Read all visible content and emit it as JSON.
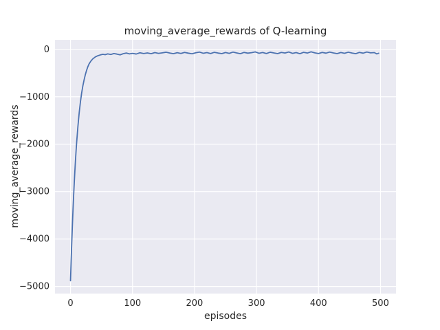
{
  "figure": {
    "background": "#ffffff"
  },
  "chart_data": {
    "type": "line",
    "title": "moving_average_rewards of Q-learning",
    "xlabel": "episodes",
    "ylabel": "moving_average_rewards",
    "xlim": [
      -25,
      525
    ],
    "ylim": [
      -5150,
      200
    ],
    "xticks": [
      0,
      100,
      200,
      300,
      400,
      500
    ],
    "yticks": [
      0,
      -1000,
      -2000,
      -3000,
      -4000,
      -5000
    ],
    "grid": true,
    "legend_position": "none",
    "line_color": "#4c72b0",
    "axes_background": "#eaeaf2",
    "grid_color": "#ffffff",
    "text_color": "#262626",
    "series": [
      {
        "name": "moving_average_rewards",
        "points": [
          [
            0,
            -4880
          ],
          [
            1,
            -4480
          ],
          [
            2,
            -4090
          ],
          [
            3,
            -3730
          ],
          [
            4,
            -3400
          ],
          [
            5,
            -3100
          ],
          [
            6,
            -2830
          ],
          [
            7,
            -2580
          ],
          [
            8,
            -2350
          ],
          [
            9,
            -2140
          ],
          [
            10,
            -1950
          ],
          [
            12,
            -1620
          ],
          [
            14,
            -1340
          ],
          [
            16,
            -1110
          ],
          [
            18,
            -920
          ],
          [
            20,
            -765
          ],
          [
            22,
            -640
          ],
          [
            24,
            -530
          ],
          [
            26,
            -440
          ],
          [
            28,
            -365
          ],
          [
            30,
            -305
          ],
          [
            33,
            -245
          ],
          [
            36,
            -200
          ],
          [
            40,
            -160
          ],
          [
            44,
            -135
          ],
          [
            48,
            -118
          ],
          [
            52,
            -105
          ],
          [
            56,
            -112
          ],
          [
            60,
            -95
          ],
          [
            65,
            -108
          ],
          [
            70,
            -88
          ],
          [
            75,
            -100
          ],
          [
            80,
            -115
          ],
          [
            85,
            -92
          ],
          [
            90,
            -78
          ],
          [
            95,
            -96
          ],
          [
            100,
            -84
          ],
          [
            106,
            -98
          ],
          [
            112,
            -72
          ],
          [
            118,
            -88
          ],
          [
            124,
            -76
          ],
          [
            130,
            -92
          ],
          [
            136,
            -68
          ],
          [
            142,
            -84
          ],
          [
            148,
            -74
          ],
          [
            154,
            -60
          ],
          [
            160,
            -78
          ],
          [
            166,
            -92
          ],
          [
            172,
            -70
          ],
          [
            178,
            -86
          ],
          [
            184,
            -64
          ],
          [
            190,
            -80
          ],
          [
            196,
            -94
          ],
          [
            202,
            -72
          ],
          [
            208,
            -58
          ],
          [
            214,
            -82
          ],
          [
            220,
            -68
          ],
          [
            226,
            -88
          ],
          [
            232,
            -62
          ],
          [
            238,
            -78
          ],
          [
            244,
            -90
          ],
          [
            250,
            -66
          ],
          [
            256,
            -84
          ],
          [
            262,
            -58
          ],
          [
            268,
            -76
          ],
          [
            274,
            -92
          ],
          [
            280,
            -64
          ],
          [
            286,
            -80
          ],
          [
            292,
            -70
          ],
          [
            298,
            -54
          ],
          [
            304,
            -82
          ],
          [
            310,
            -66
          ],
          [
            316,
            -88
          ],
          [
            322,
            -60
          ],
          [
            328,
            -76
          ],
          [
            334,
            -90
          ],
          [
            340,
            -64
          ],
          [
            346,
            -78
          ],
          [
            352,
            -56
          ],
          [
            358,
            -84
          ],
          [
            364,
            -68
          ],
          [
            370,
            -92
          ],
          [
            376,
            -62
          ],
          [
            382,
            -78
          ],
          [
            388,
            -52
          ],
          [
            394,
            -74
          ],
          [
            400,
            -88
          ],
          [
            406,
            -64
          ],
          [
            412,
            -80
          ],
          [
            418,
            -58
          ],
          [
            424,
            -76
          ],
          [
            430,
            -90
          ],
          [
            436,
            -66
          ],
          [
            442,
            -82
          ],
          [
            448,
            -60
          ],
          [
            454,
            -78
          ],
          [
            460,
            -92
          ],
          [
            466,
            -64
          ],
          [
            472,
            -80
          ],
          [
            478,
            -56
          ],
          [
            484,
            -74
          ],
          [
            490,
            -68
          ],
          [
            494,
            -96
          ],
          [
            497,
            -82
          ]
        ]
      }
    ]
  }
}
